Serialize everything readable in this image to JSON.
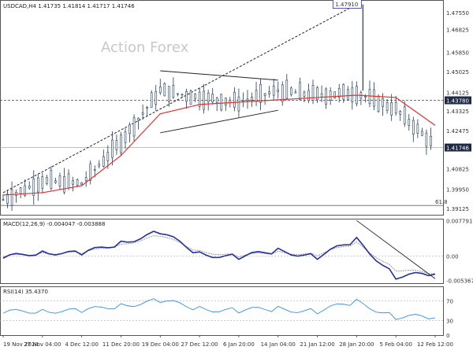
{
  "main": {
    "header_text": "USDCAD,H4  1.41735 1.41814 1.41717 1.41746",
    "watermark": "Action Forex",
    "price_labels": [
      "1.47550",
      "1.46825",
      "1.45850",
      "1.45025",
      "1.44125",
      "1.43325",
      "1.42475",
      "1.41746",
      "1.40825",
      "1.39950",
      "1.39125"
    ],
    "price_ref_label": "1.43780",
    "top_tag": "1.47910",
    "fib_label": "61.8"
  },
  "macd": {
    "header_text": "MACD(12,26,9) -0.004047 -0.003888",
    "axis_labels": [
      "0.007791",
      "0.00",
      "-0.005367"
    ]
  },
  "rsi": {
    "header_text": "RSI(14) 35.4370",
    "axis_labels": [
      "70",
      "30",
      "0"
    ]
  },
  "time_axis": {
    "labels": [
      "19 Nov 2024",
      "27 Nov 04:00",
      "4 Dec 12:00",
      "11 Dec 20:00",
      "19 Dec 04:00",
      "27 Dec 12:00",
      "6 Jan 20:00",
      "14 Jan 04:00",
      "21 Jan 12:00",
      "28 Jan 20:00",
      "5 Feb 04:00",
      "12 Feb 12:00"
    ]
  },
  "colors": {
    "candles": "#1f3b5b",
    "ma": "#e03030",
    "macd_line": "#2430a0",
    "macd_signal": "#999999",
    "rsi_line": "#3a8fe0",
    "grid": "#cccccc"
  },
  "chart_data": [
    {
      "type": "line",
      "title": "USDCAD,H4",
      "x": [
        "19 Nov 2024",
        "27 Nov 04:00",
        "4 Dec 12:00",
        "11 Dec 20:00",
        "19 Dec 04:00",
        "27 Dec 12:00",
        "6 Jan 20:00",
        "14 Jan 04:00",
        "21 Jan 12:00",
        "28 Jan 20:00",
        "5 Feb 04:00",
        "12 Feb 12:00"
      ],
      "series": [
        {
          "name": "close",
          "values": [
            1.395,
            1.403,
            1.402,
            1.42,
            1.442,
            1.439,
            1.437,
            1.442,
            1.44,
            1.441,
            1.434,
            1.418
          ]
        },
        {
          "name": "ma",
          "values": [
            1.397,
            1.398,
            1.401,
            1.414,
            1.432,
            1.436,
            1.437,
            1.438,
            1.439,
            1.44,
            1.439,
            1.427
          ]
        }
      ],
      "ylim": [
        1.3885,
        1.481
      ],
      "trendlines": [
        {
          "from": [
            "19 Nov 2024",
            1.398
          ],
          "to": [
            "28 Jan 20:00",
            1.4791
          ]
        },
        {
          "from": [
            "19 Dec 04:00",
            1.4505
          ],
          "to": [
            "14 Jan 04:00",
            1.4465
          ]
        },
        {
          "from": [
            "19 Dec 04:00",
            1.4238
          ],
          "to": [
            "14 Jan 04:00",
            1.4335
          ]
        }
      ],
      "hlines": [
        1.4378,
        1.41746,
        1.3925
      ],
      "markers": {
        "high": 1.4791
      }
    },
    {
      "type": "line",
      "title": "MACD(12,26,9)",
      "x": [
        "19 Nov 2024",
        "27 Nov 04:00",
        "4 Dec 12:00",
        "11 Dec 20:00",
        "19 Dec 04:00",
        "27 Dec 12:00",
        "6 Jan 20:00",
        "14 Jan 04:00",
        "21 Jan 12:00",
        "28 Jan 20:00",
        "5 Feb 04:00",
        "12 Feb 12:00"
      ],
      "series": [
        {
          "name": "macd",
          "values": [
            -0.0005,
            0.001,
            0.0004,
            0.003,
            0.0052,
            0.0005,
            -0.0003,
            0.0012,
            -0.0002,
            0.0035,
            -0.0045,
            -0.004
          ]
        },
        {
          "name": "signal",
          "values": [
            -0.0002,
            0.0007,
            0.0006,
            0.0025,
            0.0045,
            0.001,
            0.0,
            0.0008,
            0.0003,
            0.0028,
            -0.003,
            -0.0039
          ]
        }
      ],
      "ylim": [
        -0.006,
        0.0082
      ],
      "trendlines": [
        {
          "from": [
            "28 Jan 20:00",
            0.0078
          ],
          "to": [
            "12 Feb 12:00",
            -0.005
          ]
        }
      ]
    },
    {
      "type": "line",
      "title": "RSI(14)",
      "x": [
        "19 Nov 2024",
        "27 Nov 04:00",
        "4 Dec 12:00",
        "11 Dec 20:00",
        "19 Dec 04:00",
        "27 Dec 12:00",
        "6 Jan 20:00",
        "14 Jan 04:00",
        "21 Jan 12:00",
        "28 Jan 20:00",
        "5 Feb 04:00",
        "12 Feb 12:00"
      ],
      "series": [
        {
          "name": "rsi",
          "values": [
            45,
            52,
            48,
            62,
            70,
            55,
            50,
            54,
            49,
            68,
            38,
            35.437
          ]
        }
      ],
      "ylim": [
        0,
        100
      ],
      "hlines": [
        70,
        30
      ]
    }
  ]
}
